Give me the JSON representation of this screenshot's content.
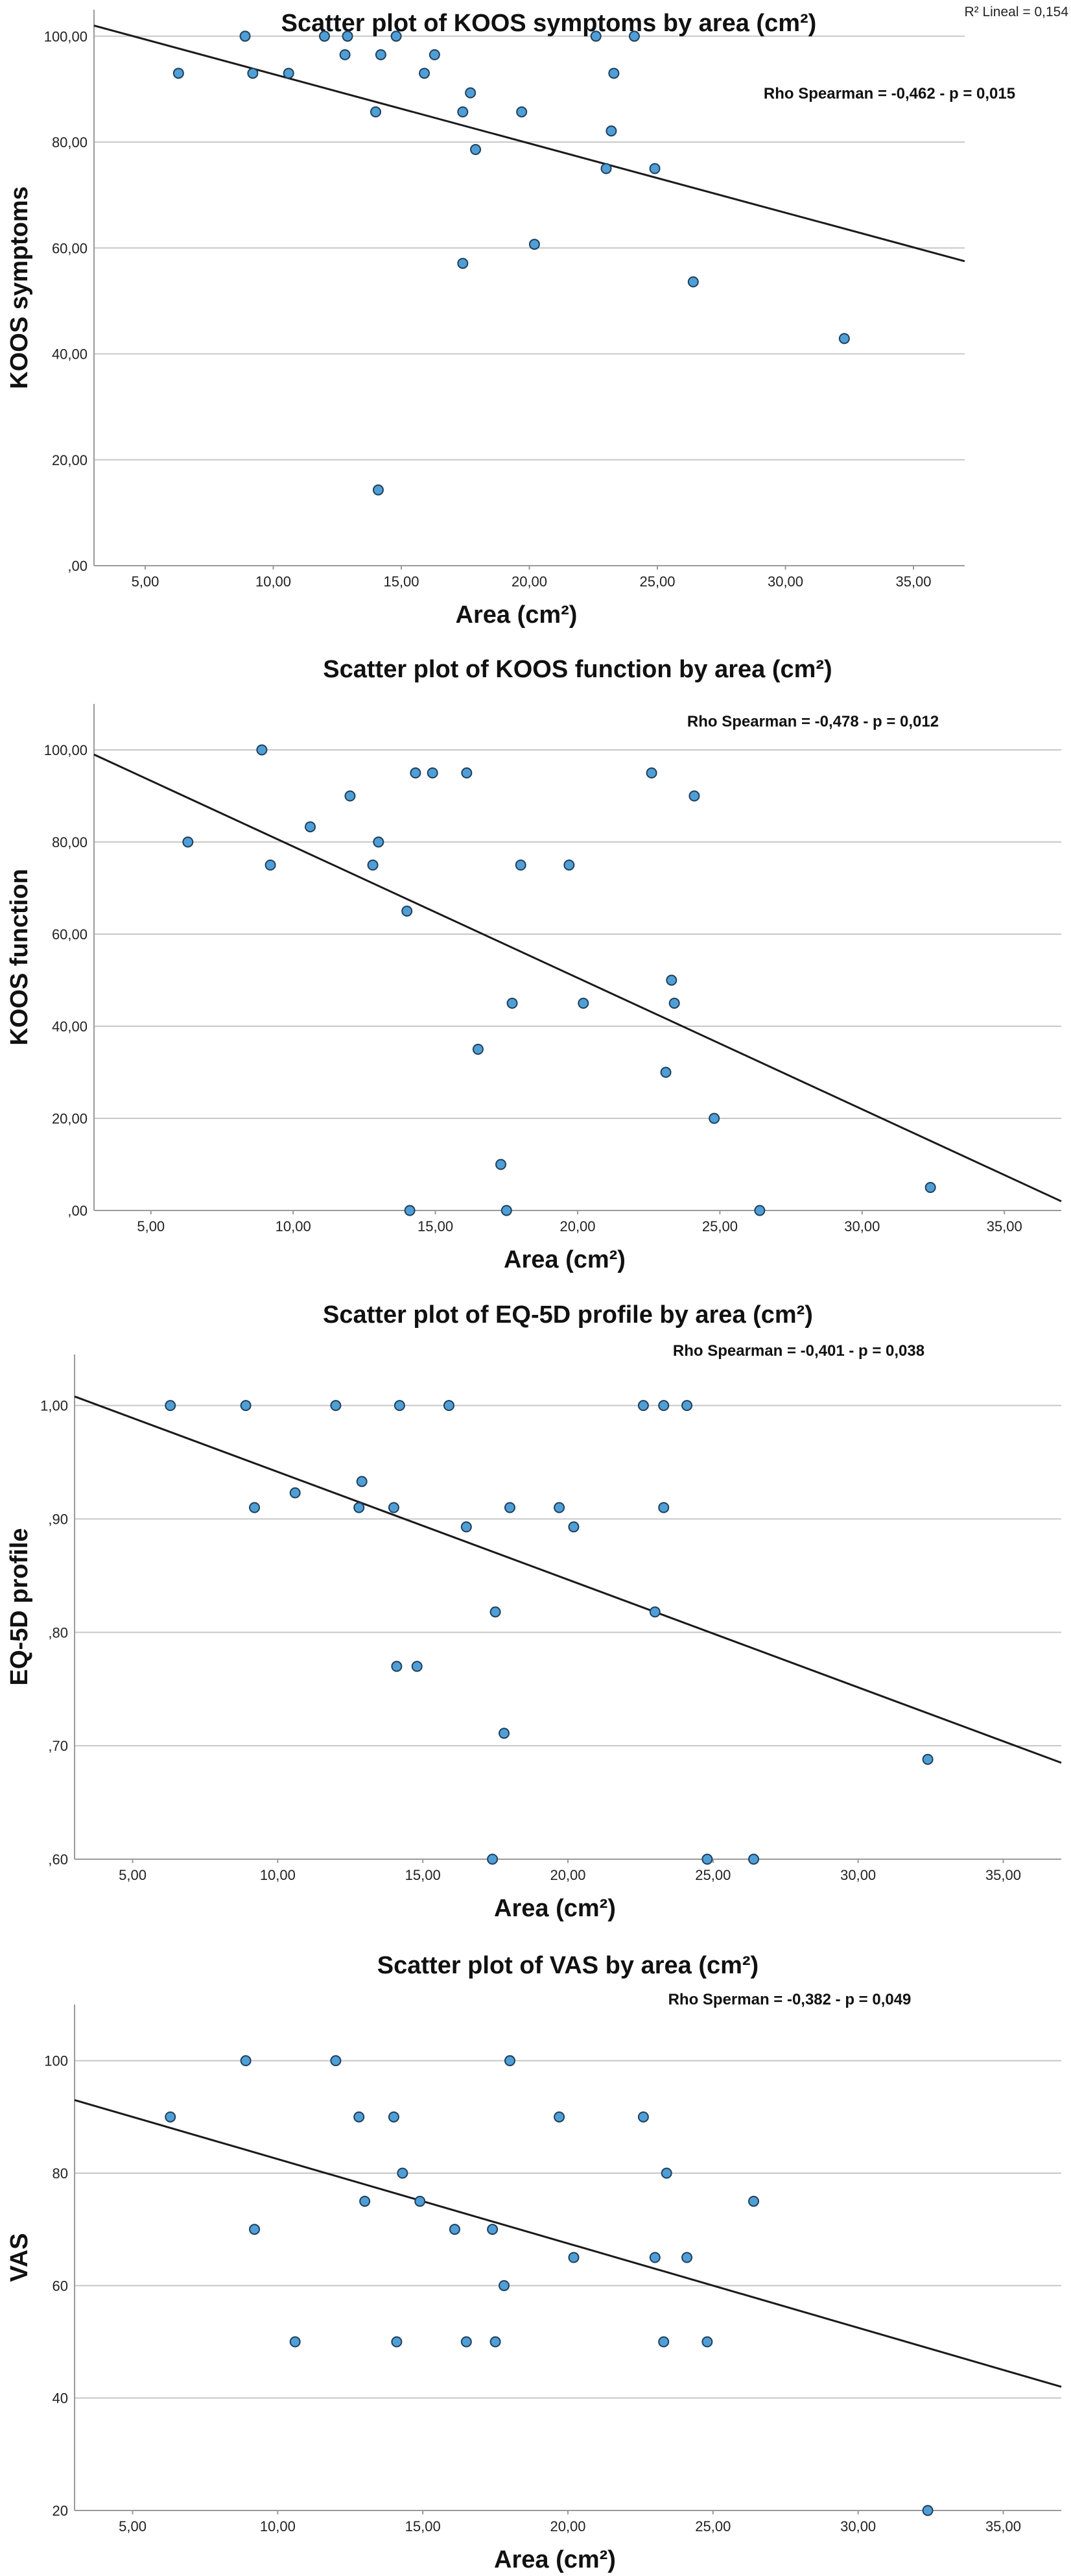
{
  "figure_note": "R² Lineal = 0,154",
  "chart_data": [
    {
      "type": "scatter",
      "title": "Scatter plot of KOOS symptoms by area (cm²)",
      "xlabel": "Area (cm²)",
      "ylabel": "KOOS symptoms",
      "xlim": [
        3,
        37
      ],
      "ylim": [
        0,
        105
      ],
      "xticks": [
        "5,00",
        "10,00",
        "15,00",
        "20,00",
        "25,00",
        "30,00",
        "35,00"
      ],
      "yticks": [
        ",00",
        "20,00",
        "40,00",
        "60,00",
        "80,00",
        "100,00"
      ],
      "grid": "horizontal",
      "annotation": "Rho Spearman = -0,462 - p = 0,015",
      "fit_line": {
        "x": [
          3,
          37
        ],
        "y": [
          102,
          57.5
        ]
      },
      "marker_color": "#4f9fd6",
      "points": [
        [
          6.3,
          93
        ],
        [
          8.9,
          100
        ],
        [
          9.2,
          93
        ],
        [
          10.6,
          93
        ],
        [
          12.0,
          100
        ],
        [
          12.8,
          96.5
        ],
        [
          12.9,
          100
        ],
        [
          14.0,
          85.7
        ],
        [
          14.2,
          96.5
        ],
        [
          14.8,
          100
        ],
        [
          15.9,
          93
        ],
        [
          16.3,
          96.5
        ],
        [
          17.4,
          85.7
        ],
        [
          17.7,
          89.3
        ],
        [
          17.9,
          78.6
        ],
        [
          19.7,
          85.7
        ],
        [
          22.6,
          100
        ],
        [
          23.0,
          75
        ],
        [
          23.2,
          82.1
        ],
        [
          23.3,
          93
        ],
        [
          24.1,
          100
        ],
        [
          24.9,
          75
        ],
        [
          20.2,
          60.7
        ],
        [
          17.4,
          57.1
        ],
        [
          26.4,
          53.6
        ],
        [
          32.3,
          42.9
        ],
        [
          14.1,
          14.3
        ]
      ]
    },
    {
      "type": "scatter",
      "title": "Scatter plot of KOOS function by area (cm²)",
      "xlabel": "Area (cm²)",
      "ylabel": "KOOS function",
      "xlim": [
        3,
        37
      ],
      "ylim": [
        0,
        110
      ],
      "xticks": [
        "5,00",
        "10,00",
        "15,00",
        "20,00",
        "25,00",
        "30,00",
        "35,00"
      ],
      "yticks": [
        ",00",
        "20,00",
        "40,00",
        "60,00",
        "80,00",
        "100,00"
      ],
      "grid": "horizontal",
      "annotation": "Rho Spearman = -0,478 - p = 0,012",
      "fit_line": {
        "x": [
          3,
          37
        ],
        "y": [
          99,
          2
        ]
      },
      "marker_color": "#4f9fd6",
      "points": [
        [
          6.3,
          80
        ],
        [
          8.9,
          100
        ],
        [
          9.2,
          75
        ],
        [
          10.6,
          83.3
        ],
        [
          12.0,
          90
        ],
        [
          12.8,
          75
        ],
        [
          13.0,
          80
        ],
        [
          14.0,
          65
        ],
        [
          14.3,
          95
        ],
        [
          14.9,
          95
        ],
        [
          16.1,
          95
        ],
        [
          16.5,
          35
        ],
        [
          17.7,
          45
        ],
        [
          18.0,
          75
        ],
        [
          19.7,
          75
        ],
        [
          20.2,
          45
        ],
        [
          22.6,
          95
        ],
        [
          23.1,
          30
        ],
        [
          23.3,
          50
        ],
        [
          23.4,
          45
        ],
        [
          24.1,
          90
        ],
        [
          24.8,
          20
        ],
        [
          17.3,
          10
        ],
        [
          17.5,
          0
        ],
        [
          14.1,
          0
        ],
        [
          26.4,
          0
        ],
        [
          32.4,
          5
        ]
      ]
    },
    {
      "type": "scatter",
      "title": "Scatter plot of EQ-5D profile by area (cm²)",
      "xlabel": "Area (cm²)",
      "ylabel": "EQ-5D profile",
      "xlim": [
        3,
        37
      ],
      "ylim": [
        0.6,
        1.045
      ],
      "xticks": [
        "5,00",
        "10,00",
        "15,00",
        "20,00",
        "25,00",
        "30,00",
        "35,00"
      ],
      "yticks": [
        ",60",
        ",70",
        ",80",
        ",90",
        "1,00"
      ],
      "grid": "horizontal",
      "annotation": "Rho Spearman = -0,401 - p = 0,038",
      "fit_line": {
        "x": [
          3,
          37
        ],
        "y": [
          1.008,
          0.685
        ]
      },
      "marker_color": "#4f9fd6",
      "points": [
        [
          6.3,
          1.0
        ],
        [
          8.9,
          1.0
        ],
        [
          12.0,
          1.0
        ],
        [
          14.2,
          1.0
        ],
        [
          15.9,
          1.0
        ],
        [
          22.6,
          1.0
        ],
        [
          23.3,
          1.0
        ],
        [
          24.1,
          1.0
        ],
        [
          9.2,
          0.91
        ],
        [
          10.6,
          0.923
        ],
        [
          12.8,
          0.91
        ],
        [
          12.9,
          0.933
        ],
        [
          14.0,
          0.91
        ],
        [
          16.5,
          0.893
        ],
        [
          18.0,
          0.91
        ],
        [
          19.7,
          0.91
        ],
        [
          20.2,
          0.893
        ],
        [
          23.3,
          0.91
        ],
        [
          17.5,
          0.818
        ],
        [
          23.0,
          0.818
        ],
        [
          14.1,
          0.77
        ],
        [
          14.8,
          0.77
        ],
        [
          17.8,
          0.711
        ],
        [
          17.4,
          0.6
        ],
        [
          24.8,
          0.6
        ],
        [
          26.4,
          0.6
        ],
        [
          32.4,
          0.688
        ]
      ]
    },
    {
      "type": "scatter",
      "title": "Scatter plot of VAS by area (cm²)",
      "xlabel": "Area (cm²)",
      "ylabel": "VAS",
      "xlim": [
        3,
        37
      ],
      "ylim": [
        20,
        110
      ],
      "xticks": [
        "5,00",
        "10,00",
        "15,00",
        "20,00",
        "25,00",
        "30,00",
        "35,00"
      ],
      "yticks": [
        "20",
        "40",
        "60",
        "80",
        "100"
      ],
      "grid": "horizontal",
      "annotation": "Rho Sperman = -0,382 - p = 0,049",
      "fit_line": {
        "x": [
          3,
          37
        ],
        "y": [
          93,
          42
        ]
      },
      "marker_color": "#4f9fd6",
      "points": [
        [
          6.3,
          90
        ],
        [
          8.9,
          100
        ],
        [
          9.2,
          70
        ],
        [
          10.6,
          50
        ],
        [
          12.0,
          100
        ],
        [
          12.8,
          90
        ],
        [
          13.0,
          75
        ],
        [
          14.0,
          90
        ],
        [
          14.1,
          50
        ],
        [
          14.3,
          80
        ],
        [
          14.9,
          75
        ],
        [
          16.1,
          70
        ],
        [
          16.5,
          50
        ],
        [
          17.4,
          70
        ],
        [
          17.5,
          50
        ],
        [
          17.8,
          60
        ],
        [
          18.0,
          100
        ],
        [
          19.7,
          90
        ],
        [
          20.2,
          65
        ],
        [
          22.6,
          90
        ],
        [
          23.0,
          65
        ],
        [
          23.3,
          50
        ],
        [
          23.4,
          80
        ],
        [
          24.1,
          65
        ],
        [
          24.8,
          50
        ],
        [
          26.4,
          75
        ],
        [
          32.4,
          20
        ]
      ]
    }
  ]
}
